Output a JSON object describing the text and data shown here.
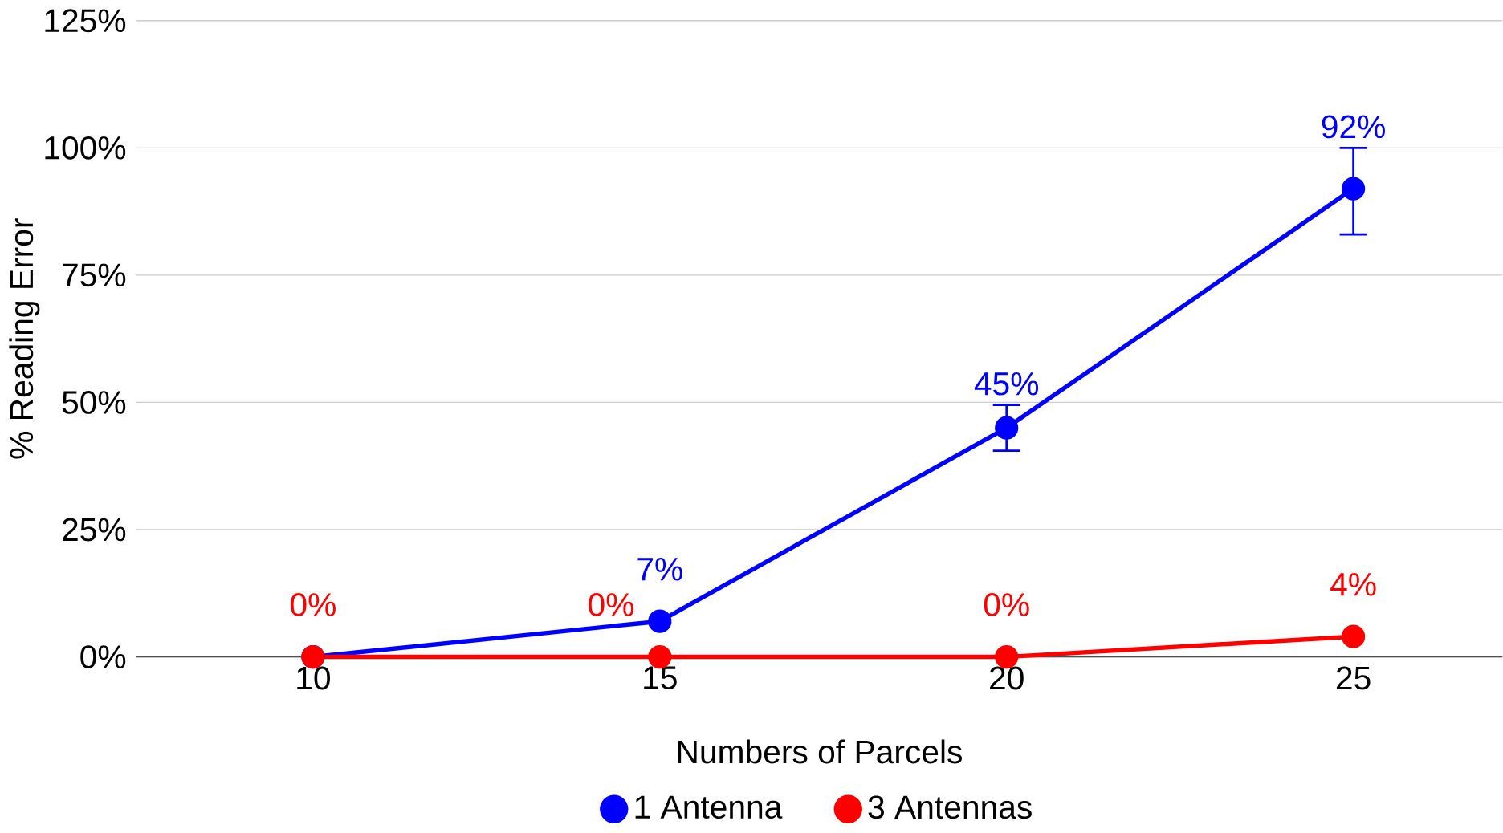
{
  "chart_data": {
    "type": "line",
    "xlabel": "Numbers of Parcels",
    "ylabel": "% Reading Error",
    "categories": [
      "10",
      "15",
      "20",
      "25"
    ],
    "series": [
      {
        "name": "1 Antenna",
        "color": "#0000ff",
        "values": [
          0,
          7,
          45,
          92
        ],
        "errors": [
          null,
          null,
          [
            40.5,
            49.5
          ],
          [
            83,
            100
          ]
        ],
        "value_labels": [
          null,
          "7%",
          "45%",
          "92%"
        ]
      },
      {
        "name": "3 Antennas",
        "color": "#ff0000",
        "values": [
          0,
          0,
          0,
          4
        ],
        "value_labels": [
          "0%",
          "0%",
          "0%",
          "4%"
        ]
      }
    ],
    "ylim": [
      0,
      125
    ],
    "yticks": [
      {
        "value": 0,
        "label": "0%"
      },
      {
        "value": 25,
        "label": "25%"
      },
      {
        "value": 50,
        "label": "50%"
      },
      {
        "value": 75,
        "label": "75%"
      },
      {
        "value": 100,
        "label": "100%"
      },
      {
        "value": 125,
        "label": "125%"
      }
    ],
    "grid": "y",
    "legend": "bottom",
    "marker": "circle",
    "line_style": "solid"
  }
}
